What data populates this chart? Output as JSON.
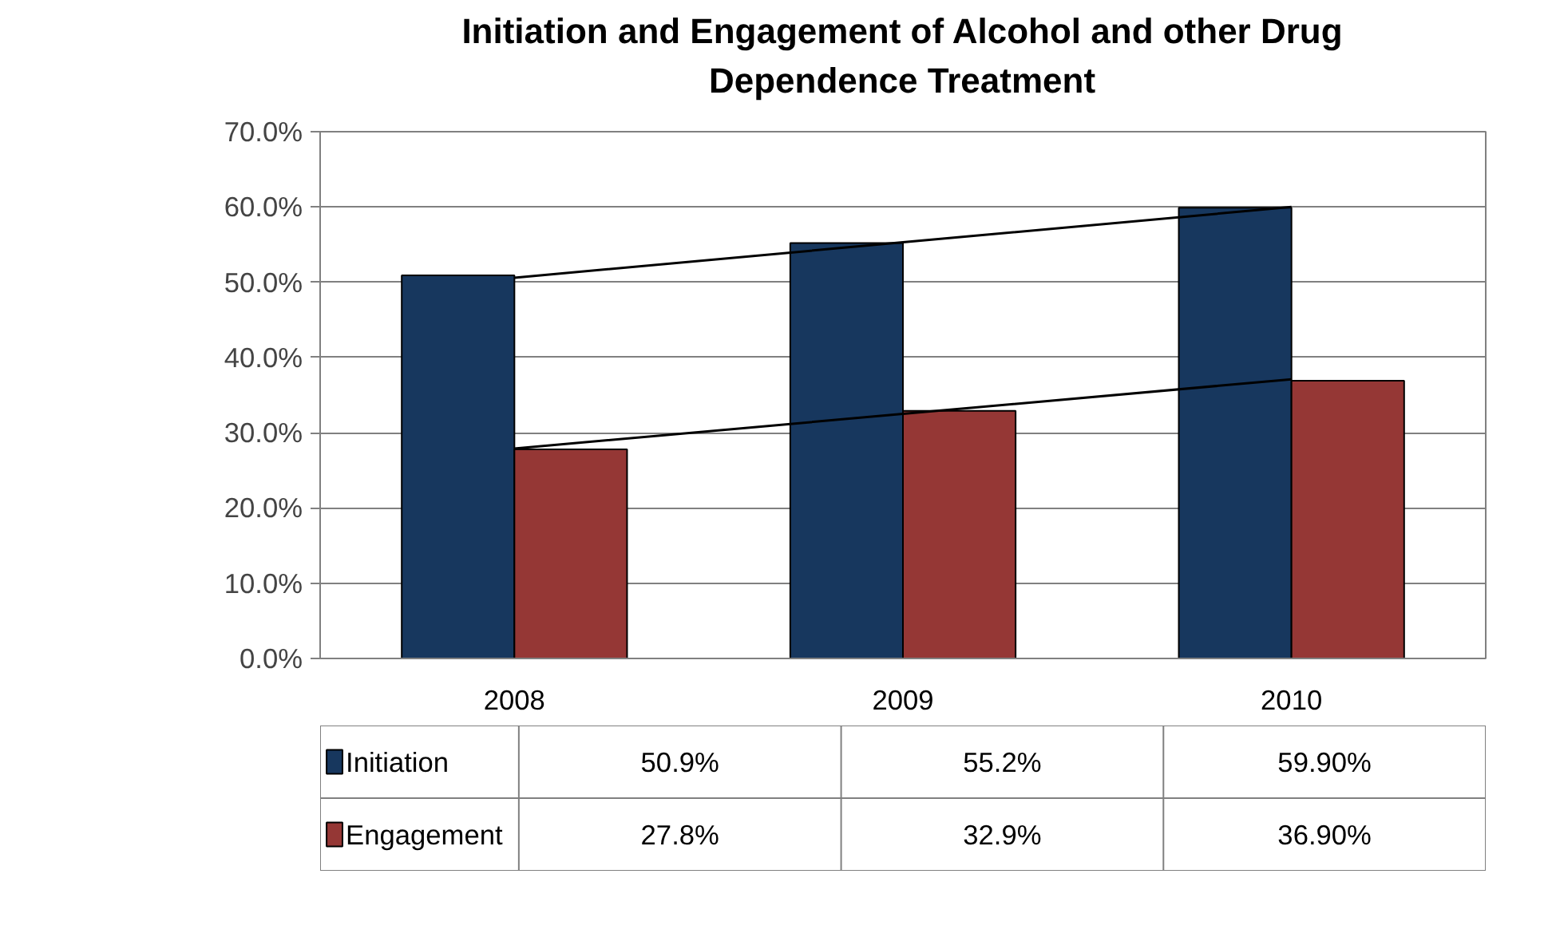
{
  "chart_data": {
    "type": "bar",
    "title": "Initiation and Engagement of Alcohol and other Drug Dependence Treatment",
    "categories": [
      "2008",
      "2009",
      "2010"
    ],
    "series": [
      {
        "name": "Initiation",
        "color": "#17375e",
        "values": [
          50.9,
          55.2,
          59.9
        ],
        "value_labels": [
          "50.9%",
          "55.2%",
          "59.90%"
        ]
      },
      {
        "name": "Engagement",
        "color": "#953735",
        "values": [
          27.8,
          32.9,
          36.9
        ],
        "value_labels": [
          "27.8%",
          "32.9%",
          "36.90%"
        ]
      },
      {
        "type": "line",
        "color": "#000000",
        "values": [
          50.6,
          55.3,
          60.0
        ]
      },
      {
        "type": "line",
        "color": "#000000",
        "values": [
          27.9,
          32.5,
          37.1
        ]
      }
    ],
    "ylim": [
      0,
      70
    ],
    "yticks": [
      {
        "value": 0,
        "label": "0.0%"
      },
      {
        "value": 10,
        "label": "10.0%"
      },
      {
        "value": 20,
        "label": "20.0%"
      },
      {
        "value": 30,
        "label": "30.0%"
      },
      {
        "value": 40,
        "label": "40.0%"
      },
      {
        "value": 50,
        "label": "50.0%"
      },
      {
        "value": 60,
        "label": "60.0%"
      },
      {
        "value": 70,
        "label": "70.0%"
      }
    ],
    "grid": "y",
    "legend": "bottom"
  }
}
